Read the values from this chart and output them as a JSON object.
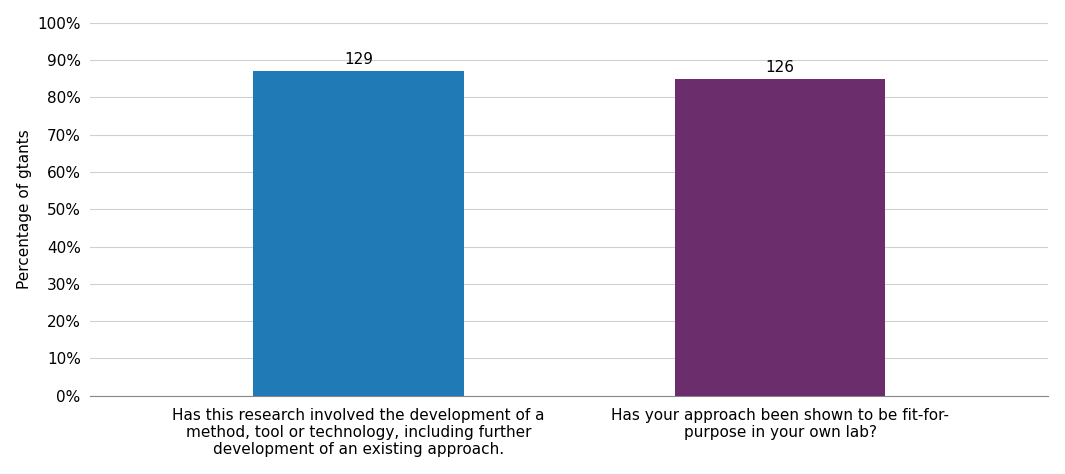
{
  "categories": [
    "Has this research involved the development of a\nmethod, tool or technology, including further\ndevelopment of an existing approach.",
    "Has your approach been shown to be fit-for-\npurpose in your own lab?"
  ],
  "values": [
    87,
    85
  ],
  "bar_labels": [
    129,
    126
  ],
  "bar_colors": [
    "#1f7ab5",
    "#6b2d6b"
  ],
  "ylabel": "Percentage of gtants",
  "ylim": [
    0,
    100
  ],
  "yticks": [
    0,
    10,
    20,
    30,
    40,
    50,
    60,
    70,
    80,
    90,
    100
  ],
  "ytick_labels": [
    "0%",
    "10%",
    "20%",
    "30%",
    "40%",
    "50%",
    "60%",
    "70%",
    "80%",
    "90%",
    "100%"
  ],
  "bar_width": 0.22,
  "label_fontsize": 11,
  "tick_fontsize": 11,
  "ylabel_fontsize": 11,
  "annotation_fontsize": 11,
  "background_color": "#ffffff",
  "grid_color": "#d0d0d0",
  "x_positions": [
    0.28,
    0.72
  ]
}
